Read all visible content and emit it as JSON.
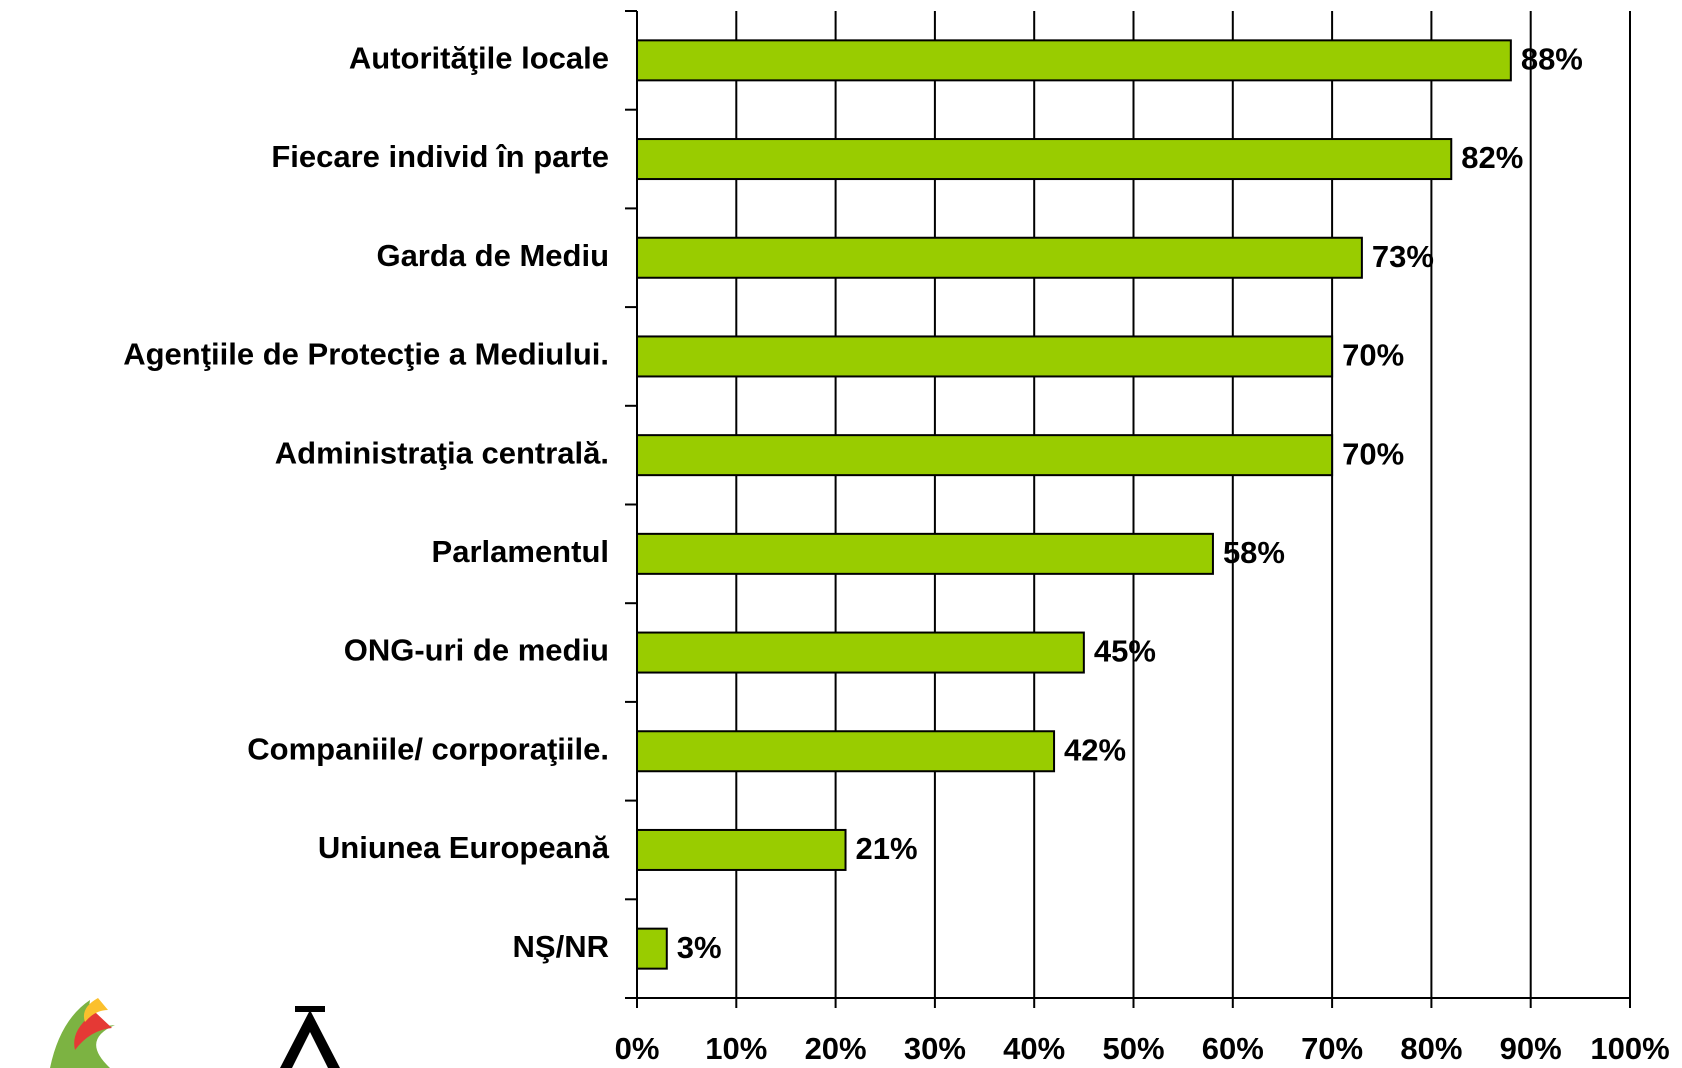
{
  "chart_data": {
    "type": "barh",
    "categories": [
      "Autorităţile locale",
      "Fiecare individ în parte",
      "Garda de Mediu",
      "Agenţiile de Protecţie a Mediului.",
      "Administraţia centrală.",
      "Parlamentul",
      "ONG-uri de mediu",
      "Companiile/ corporaţiile.",
      "Uniunea Europeană",
      "NŞ/NR"
    ],
    "values": [
      88,
      82,
      73,
      70,
      70,
      58,
      45,
      42,
      21,
      3
    ],
    "value_labels": [
      "88%",
      "82%",
      "73%",
      "70%",
      "70%",
      "58%",
      "45%",
      "42%",
      "21%",
      "3%"
    ],
    "color": "#99cc00",
    "xlim": [
      0,
      100
    ],
    "xticks": [
      {
        "value": 0,
        "label": "0%"
      },
      {
        "value": 10,
        "label": "10%"
      },
      {
        "value": 20,
        "label": "20%"
      },
      {
        "value": 30,
        "label": "30%"
      },
      {
        "value": 40,
        "label": "40%"
      },
      {
        "value": 50,
        "label": "50%"
      },
      {
        "value": 60,
        "label": "60%"
      },
      {
        "value": 70,
        "label": "70%"
      },
      {
        "value": 80,
        "label": "80%"
      },
      {
        "value": 90,
        "label": "90%"
      },
      {
        "value": 100,
        "label": "100%"
      }
    ],
    "grid": true
  }
}
